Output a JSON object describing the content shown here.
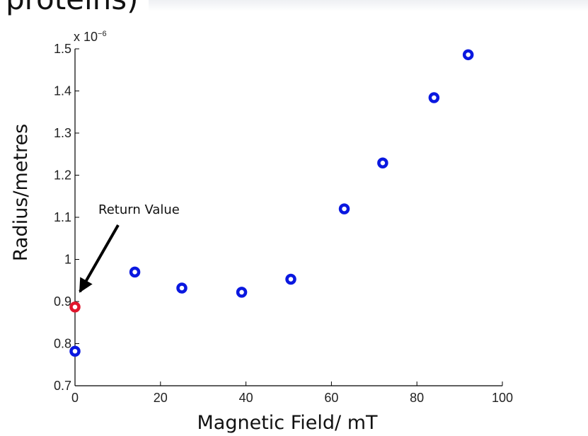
{
  "header": {
    "partial_text": "proteins)"
  },
  "chart_data": {
    "type": "scatter",
    "xlabel": "Magnetic Field/ mT",
    "ylabel": "Radius/metres",
    "exponent_label": "x 10",
    "exponent_power": "−6",
    "xlim": [
      0,
      100
    ],
    "ylim": [
      0.7,
      1.5
    ],
    "x_ticks": [
      0,
      20,
      40,
      60,
      80,
      100
    ],
    "y_ticks": [
      0.7,
      0.8,
      0.9,
      1,
      1.1,
      1.2,
      1.3,
      1.4,
      1.5
    ],
    "x_tick_labels": [
      "0",
      "20",
      "40",
      "60",
      "80",
      "100"
    ],
    "y_tick_labels": [
      "0.7",
      "0.8",
      "0.9",
      "1",
      "1.1",
      "1.2",
      "1.3",
      "1.4",
      "1.5"
    ],
    "grid": false,
    "series": [
      {
        "color": "#0a18e0",
        "x": [
          0,
          14,
          25,
          39,
          50.5,
          63,
          72,
          84,
          92
        ],
        "y": [
          0.782,
          0.97,
          0.932,
          0.922,
          0.953,
          1.12,
          1.229,
          1.384,
          1.486
        ]
      },
      {
        "color": "#e0162c",
        "x": [
          0
        ],
        "y": [
          0.887
        ]
      }
    ],
    "annotations": [
      {
        "text": "Return Value",
        "points_to": {
          "x": 0,
          "y": 0.887
        }
      }
    ]
  }
}
